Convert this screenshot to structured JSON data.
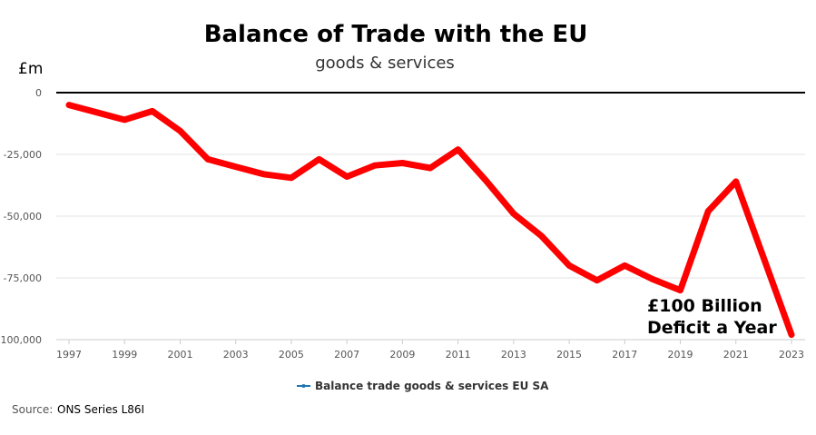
{
  "chart_data": {
    "type": "line",
    "title": "Balance of Trade with the EU",
    "subtitle": "goods & services",
    "unit_label": "£m",
    "x": [
      1997,
      1998,
      1999,
      2000,
      2001,
      2002,
      2003,
      2004,
      2005,
      2006,
      2007,
      2008,
      2009,
      2010,
      2011,
      2012,
      2013,
      2014,
      2015,
      2016,
      2017,
      2018,
      2019,
      2020,
      2021,
      2022,
      2023
    ],
    "x_tick_labels": [
      "1997",
      "1999",
      "2001",
      "2003",
      "2005",
      "2007",
      "2009",
      "2011",
      "2013",
      "2015",
      "2017",
      "2019",
      "2021",
      "2023"
    ],
    "y_tick_labels": [
      "0",
      "-25,000",
      "-50,000",
      "-75,000",
      "-100,000"
    ],
    "ylim": [
      -100000,
      0
    ],
    "series": [
      {
        "name": "Balance trade goods & services EU SA",
        "color": "#ff0000",
        "legend_color": "#1f77b4",
        "values": [
          -5000,
          -8000,
          -11000,
          -7500,
          -15500,
          -27000,
          -30000,
          -33000,
          -34500,
          -27000,
          -34000,
          -29500,
          -28500,
          -30500,
          -23000,
          -35500,
          -49000,
          -58000,
          -70000,
          -76000,
          -70000,
          -75500,
          -80000,
          -48000,
          -36000,
          -67000,
          -98000
        ]
      }
    ],
    "annotation": {
      "line1": "£100 Billion",
      "line2": "Deficit a Year"
    },
    "grid": true,
    "legend_position": "bottom-center"
  },
  "source": {
    "label": "Source:",
    "text": "ONS Series L86I"
  }
}
